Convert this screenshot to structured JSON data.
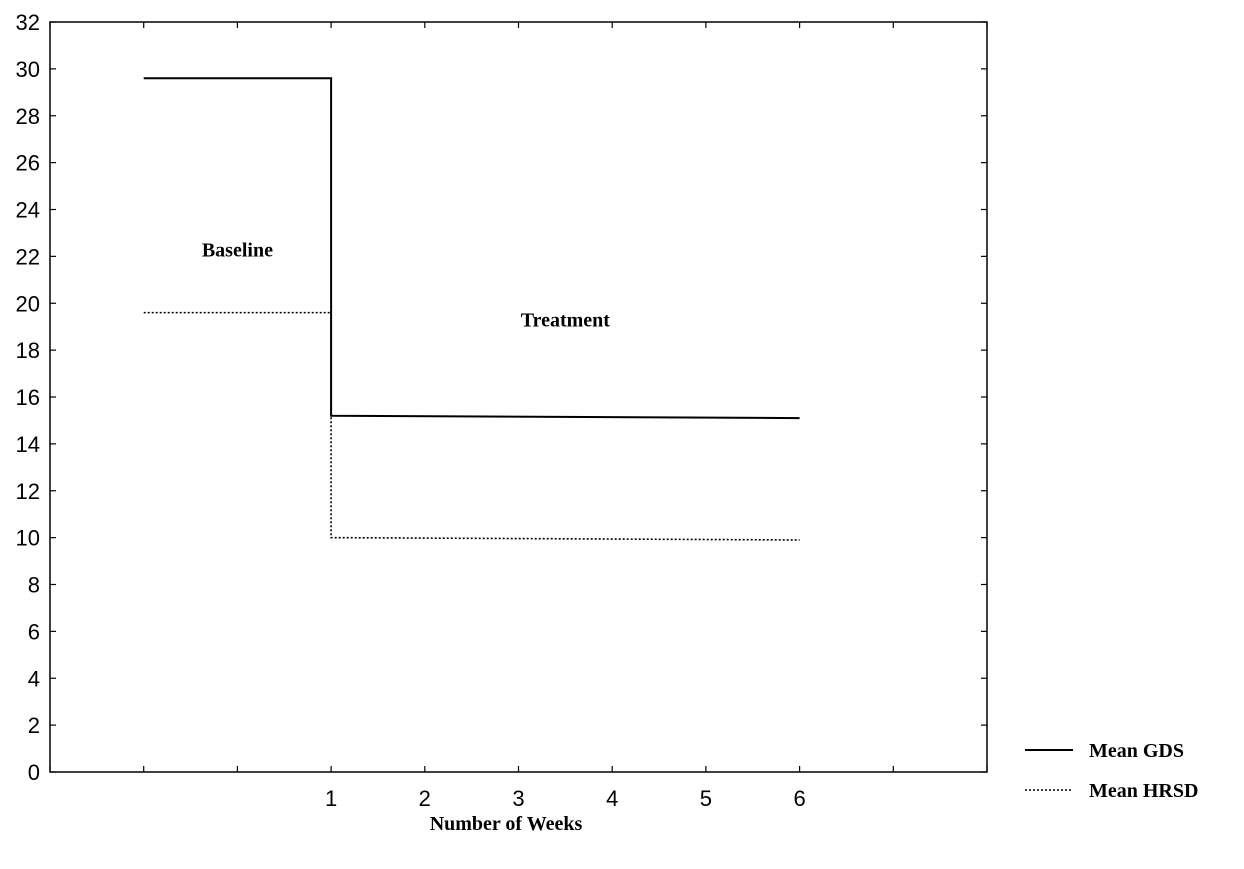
{
  "chart_data": {
    "type": "line",
    "title": "",
    "xlabel": "Number of Weeks",
    "ylabel": "",
    "xlim": [
      -2,
      8
    ],
    "ylim": [
      0,
      32
    ],
    "y_ticks": [
      0,
      2,
      4,
      6,
      8,
      10,
      12,
      14,
      16,
      18,
      20,
      22,
      24,
      26,
      28,
      30,
      32
    ],
    "x_ticks": [
      -2,
      -1,
      0,
      1,
      2,
      3,
      4,
      5,
      6,
      7,
      8
    ],
    "x_tick_labels": [
      "1",
      "2",
      "3",
      "4",
      "5",
      "6"
    ],
    "grid": false,
    "legend_position": "bottom-right-outside",
    "series": [
      {
        "name": "Mean GDS",
        "style": "solid",
        "color": "#000000",
        "points": [
          [
            -1,
            29.6
          ],
          [
            1,
            29.6
          ],
          [
            1,
            15.2
          ],
          [
            6,
            15.1
          ]
        ]
      },
      {
        "name": "Mean HRSD",
        "style": "dotted",
        "color": "#000000",
        "points": [
          [
            -1,
            19.6
          ],
          [
            1,
            19.6
          ],
          [
            1,
            10.0
          ],
          [
            6,
            9.9
          ]
        ]
      }
    ],
    "annotations": [
      {
        "text": "Baseline",
        "x": 0.0,
        "y": 22.0
      },
      {
        "text": "Treatment",
        "x": 3.5,
        "y": 19.0
      }
    ]
  }
}
